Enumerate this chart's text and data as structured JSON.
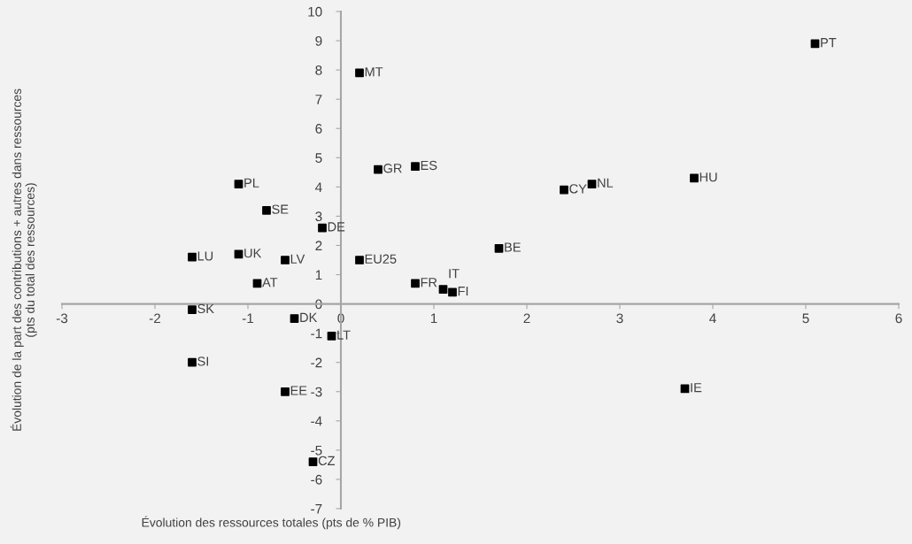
{
  "chart_data": {
    "type": "scatter",
    "xlabel": "Évolution des ressources totales (pts de % PIB)",
    "ylabel": "Évolution de la part des contributions + autres dans ressources\n(pts du total des ressources)",
    "x": [
      5.1,
      0.2,
      0.4,
      0.8,
      2.4,
      2.7,
      3.8,
      1.7,
      0.2,
      0.8,
      1.1,
      1.2,
      -1.1,
      -0.8,
      -0.2,
      -1.6,
      -1.1,
      -0.6,
      -0.9,
      -1.6,
      -0.5,
      -0.1,
      -1.6,
      -0.6,
      -0.3,
      3.7
    ],
    "series": [
      {
        "color": "#000000",
        "values": [
          8.9,
          7.9,
          4.6,
          4.7,
          3.9,
          4.1,
          4.3,
          1.9,
          1.5,
          0.7,
          0.5,
          0.4,
          4.1,
          3.2,
          2.6,
          1.6,
          1.7,
          1.5,
          0.7,
          -0.2,
          -0.5,
          -1.1,
          -2.0,
          -3.0,
          -5.4,
          -2.9
        ]
      }
    ],
    "annotations": [
      {
        "text": "PT",
        "x": 5.1,
        "y": 8.9
      },
      {
        "text": "MT",
        "x": 0.2,
        "y": 7.9
      },
      {
        "text": "GR",
        "x": 0.4,
        "y": 4.6
      },
      {
        "text": "ES",
        "x": 0.8,
        "y": 4.7
      },
      {
        "text": "CY",
        "x": 2.4,
        "y": 3.9
      },
      {
        "text": "NL",
        "x": 2.7,
        "y": 4.1
      },
      {
        "text": "HU",
        "x": 3.8,
        "y": 4.3
      },
      {
        "text": "BE",
        "x": 1.7,
        "y": 1.9
      },
      {
        "text": "EU25",
        "x": 0.2,
        "y": 1.5
      },
      {
        "text": "FR",
        "x": 0.8,
        "y": 0.7
      },
      {
        "text": "IT",
        "x": 1.1,
        "y": 0.5
      },
      {
        "text": "FI",
        "x": 1.2,
        "y": 0.4
      },
      {
        "text": "PL",
        "x": -1.1,
        "y": 4.1
      },
      {
        "text": "SE",
        "x": -0.8,
        "y": 3.2
      },
      {
        "text": "DE",
        "x": -0.2,
        "y": 2.6
      },
      {
        "text": "LU",
        "x": -1.6,
        "y": 1.6
      },
      {
        "text": "UK",
        "x": -1.1,
        "y": 1.7
      },
      {
        "text": "LV",
        "x": -0.6,
        "y": 1.5
      },
      {
        "text": "AT",
        "x": -0.9,
        "y": 0.7
      },
      {
        "text": "SK",
        "x": -1.6,
        "y": -0.2
      },
      {
        "text": "DK",
        "x": -0.5,
        "y": -0.5
      },
      {
        "text": "LT",
        "x": -0.1,
        "y": -1.1
      },
      {
        "text": "SI",
        "x": -1.6,
        "y": -2.0
      },
      {
        "text": "EE",
        "x": -0.6,
        "y": -3.0
      },
      {
        "text": "CZ",
        "x": -0.3,
        "y": -5.4
      },
      {
        "text": "IE",
        "x": 3.7,
        "y": -2.9
      }
    ],
    "xlim": [
      -3,
      6
    ],
    "xticks": [
      -3,
      -2,
      -1,
      0,
      1,
      2,
      3,
      4,
      5,
      6
    ],
    "ylim": [
      -7,
      10
    ],
    "yticks": [
      -7,
      -6,
      -5,
      -4,
      -3,
      -2,
      -1,
      0,
      1,
      2,
      3,
      4,
      5,
      6,
      7,
      8,
      9,
      10
    ],
    "marker": "square",
    "grid": false,
    "legend": false
  }
}
